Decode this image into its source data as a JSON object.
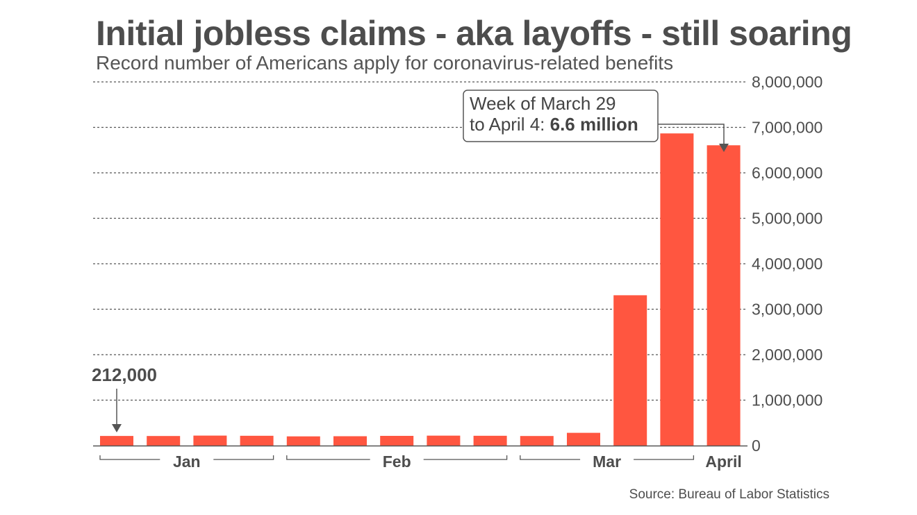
{
  "title": "Initial jobless claims - aka layoffs - still soaring",
  "subtitle": "Record number of Americans apply for coronavirus-related benefits",
  "source": "Source: Bureau of Labor Statistics",
  "callout": {
    "line1": "Week of March 29",
    "line2_prefix": "to April 4: ",
    "line2_bold": "6.6 million"
  },
  "first_bar_label": "212,000",
  "colors": {
    "bar": "#ff5640",
    "grid": "#555555",
    "text": "#4d4d4d"
  },
  "chart_data": {
    "type": "bar",
    "title": "Initial jobless claims - aka layoffs - still soaring",
    "subtitle": "Record number of Americans apply for coronavirus-related benefits",
    "values": [
      212000,
      211000,
      220000,
      216000,
      203000,
      206000,
      214000,
      219000,
      216000,
      211000,
      281000,
      3307000,
      6867000,
      6606000
    ],
    "month_groups": [
      {
        "label": "Jan",
        "bars": [
          0,
          3
        ]
      },
      {
        "label": "Feb",
        "bars": [
          4,
          8
        ]
      },
      {
        "label": "Mar",
        "bars": [
          9,
          12
        ]
      },
      {
        "label": "April",
        "bars": [
          13,
          13
        ]
      }
    ],
    "ylim": [
      0,
      8000000
    ],
    "yticks": [
      0,
      1000000,
      2000000,
      3000000,
      4000000,
      5000000,
      6000000,
      7000000,
      8000000
    ],
    "ytick_labels": [
      "0",
      "1,000,000",
      "2,000,000",
      "3,000,000",
      "4,000,000",
      "5,000,000",
      "6,000,000",
      "7,000,000",
      "8,000,000"
    ],
    "y_axis_side": "right",
    "grid": "dotted horizontal",
    "annotations": [
      {
        "bar": 0,
        "text": "212,000"
      },
      {
        "bar": 13,
        "text": "Week of March 29 to April 4: 6.6 million"
      }
    ],
    "xlabel": "",
    "ylabel": ""
  }
}
